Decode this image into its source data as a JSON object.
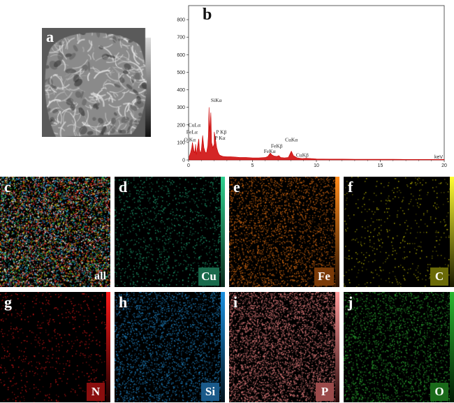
{
  "panels": {
    "a": "a",
    "b": "b",
    "c": "c",
    "d": "d",
    "e": "e",
    "f": "f",
    "g": "g",
    "h": "h",
    "i": "i",
    "j": "j"
  },
  "element_labels": {
    "c": "all",
    "d": "Cu",
    "e": "Fe",
    "f": "C",
    "g": "N",
    "h": "Si",
    "i": "P",
    "j": "O"
  },
  "colors": {
    "Cu": "#1fa877",
    "Fe": "#d86a12",
    "C": "#c8c400",
    "N": "#d81818",
    "Si": "#1f86c8",
    "P": "#e07a7a",
    "O": "#2aa830",
    "spectrum": "#cc0000"
  },
  "chart_data": {
    "type": "line",
    "xlabel": "keV",
    "ylabel": "",
    "xlim": [
      0,
      20
    ],
    "ylim": [
      0,
      880
    ],
    "x_ticks": [
      0,
      5,
      10,
      15,
      20
    ],
    "y_ticks": [
      0,
      100,
      200,
      300,
      400,
      500,
      600,
      700,
      800
    ],
    "series": [
      {
        "x": [
          0.05,
          0.15,
          0.25,
          0.3,
          0.4,
          0.45,
          0.5,
          0.55,
          0.6,
          0.7,
          0.8,
          0.85,
          0.9,
          0.95,
          1.0,
          1.1,
          1.2,
          1.3,
          1.4,
          1.5,
          1.55,
          1.6,
          1.65,
          1.74,
          1.8,
          1.9,
          2.0,
          2.01,
          2.1,
          2.2,
          2.3,
          2.4,
          2.5,
          2.7,
          3.0,
          3.3,
          3.7,
          4.0,
          4.5,
          5.0,
          5.5,
          6.0,
          6.2,
          6.4,
          6.5,
          6.7,
          6.9,
          7.06,
          7.2,
          7.5,
          7.8,
          8.04,
          8.2,
          8.5,
          8.9,
          9.2,
          9.6,
          10,
          11,
          12,
          13,
          14,
          15,
          16,
          17,
          18,
          19,
          20
        ],
        "values": [
          20,
          40,
          70,
          100,
          60,
          40,
          55,
          90,
          30,
          75,
          120,
          60,
          45,
          40,
          60,
          140,
          70,
          45,
          40,
          80,
          140,
          300,
          160,
          270,
          100,
          70,
          90,
          160,
          120,
          70,
          45,
          30,
          25,
          20,
          18,
          18,
          16,
          14,
          14,
          12,
          12,
          14,
          20,
          40,
          30,
          22,
          20,
          25,
          14,
          12,
          14,
          50,
          25,
          12,
          8,
          10,
          8,
          6,
          5,
          5,
          4,
          4,
          4,
          4,
          3,
          3,
          3,
          3
        ]
      }
    ],
    "annotations": [
      "SiKα",
      "CuLα",
      "FeLα",
      "O Kα",
      "P Kβ",
      "P Kα",
      "CuKα",
      "FeKβ",
      "FeKα",
      "CuKβ"
    ]
  }
}
